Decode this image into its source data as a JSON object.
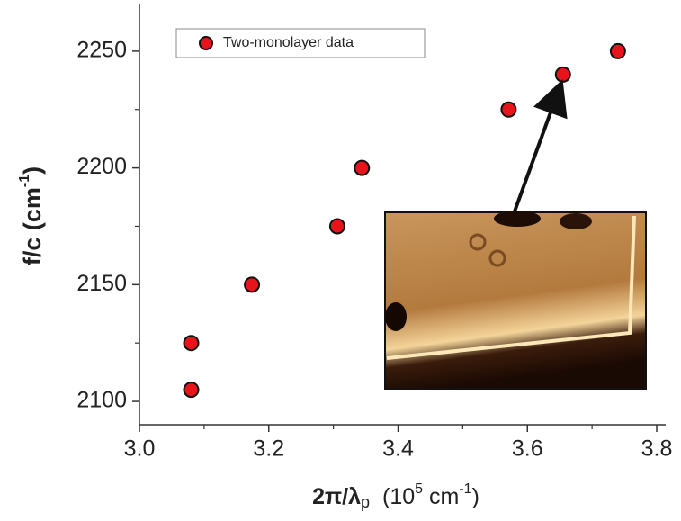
{
  "chart_data": {
    "type": "scatter",
    "x_label": [
      "2π/λ",
      "p",
      "(10",
      "5",
      " cm",
      "-1",
      ")"
    ],
    "y_label": [
      "f/c (cm",
      "-1",
      ")"
    ],
    "xlim": [
      3.0,
      3.8
    ],
    "xticks": [
      {
        "value": 3.0,
        "label": "3.0"
      },
      3.2,
      3.4,
      3.6,
      3.8
    ],
    "xminorticks": [
      3.1,
      3.3,
      3.5,
      3.7
    ],
    "ylim": [
      2090,
      2270
    ],
    "yticks": [
      2100,
      2150,
      2200,
      2250
    ],
    "yminorticks": [
      2125,
      2175,
      2225
    ],
    "legend": "upper left",
    "series": [
      {
        "name": "Two-monolayer data",
        "color": "#e8141b",
        "x": [
          3.08,
          3.08,
          3.174,
          3.306,
          3.344,
          3.571,
          3.655,
          3.74
        ],
        "values": [
          2105,
          2125,
          2150,
          2175,
          2200,
          2225,
          2240,
          2250
        ]
      }
    ]
  }
}
